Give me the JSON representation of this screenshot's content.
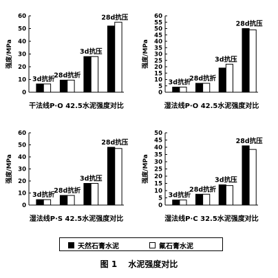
{
  "legend": {
    "items": [
      {
        "label": "天然石膏水泥",
        "color": "#000000"
      },
      {
        "label": "氟石膏水泥",
        "color": "#ffffff"
      }
    ]
  },
  "caption": "图 1　 水泥强度对比",
  "chart_data": [
    {
      "type": "bar",
      "title": "干法线P·O 42.5水泥强度对比",
      "ylabel": "强度/MPa",
      "ylim": [
        0,
        60
      ],
      "yticks": [
        0,
        10,
        20,
        30,
        40,
        50,
        60
      ],
      "grid": false,
      "categories": [
        "3d抗折",
        "28d抗折",
        "3d抗压",
        "28d抗压"
      ],
      "series": [
        {
          "name": "天然石膏水泥",
          "values": [
            6.5,
            9.5,
            28,
            52
          ]
        },
        {
          "name": "氟石膏水泥",
          "values": [
            6.5,
            9.5,
            28,
            55
          ]
        }
      ]
    },
    {
      "type": "bar",
      "title": "湿法线P·O 42.5水泥强度对比",
      "ylabel": "强度/MPa",
      "ylim": [
        0,
        60
      ],
      "yticks": [
        0,
        5,
        10,
        15,
        20,
        25,
        30,
        35,
        40,
        45,
        50,
        55,
        60
      ],
      "grid": false,
      "categories": [
        "3d抗折",
        "28d抗折",
        "3d抗压",
        "28d抗压"
      ],
      "series": [
        {
          "name": "天然石膏水泥",
          "values": [
            4,
            7,
            19,
            50
          ]
        },
        {
          "name": "氟石膏水泥",
          "values": [
            4,
            7,
            22,
            49
          ]
        }
      ]
    },
    {
      "type": "bar",
      "title": "湿法线P·S 42.5水泥强度对比",
      "ylabel": "强度/MPa",
      "ylim": [
        0,
        60
      ],
      "yticks": [
        0,
        10,
        20,
        30,
        40,
        50,
        60
      ],
      "grid": false,
      "categories": [
        "3d抗折",
        "28d抗折",
        "3d抗压",
        "28d抗压"
      ],
      "series": [
        {
          "name": "天然石膏水泥",
          "values": [
            4.5,
            8,
            18,
            48
          ]
        },
        {
          "name": "氟石膏水泥",
          "values": [
            4.5,
            8,
            18,
            47
          ]
        }
      ]
    },
    {
      "type": "bar",
      "title": "湿法线P·C 32.5水泥强度对比",
      "ylabel": "强度/MPa",
      "ylim": [
        0,
        50
      ],
      "yticks": [
        0,
        5,
        10,
        15,
        20,
        25,
        30,
        35,
        40,
        45,
        50
      ],
      "grid": false,
      "categories": [
        "3d抗折",
        "28d抗折",
        "3d抗压",
        "28d抗压"
      ],
      "series": [
        {
          "name": "天然石膏水泥",
          "values": [
            3.5,
            7.5,
            14,
            41
          ]
        },
        {
          "name": "氟石膏水泥",
          "values": [
            3.5,
            7.5,
            13.5,
            38.5
          ]
        }
      ]
    }
  ]
}
